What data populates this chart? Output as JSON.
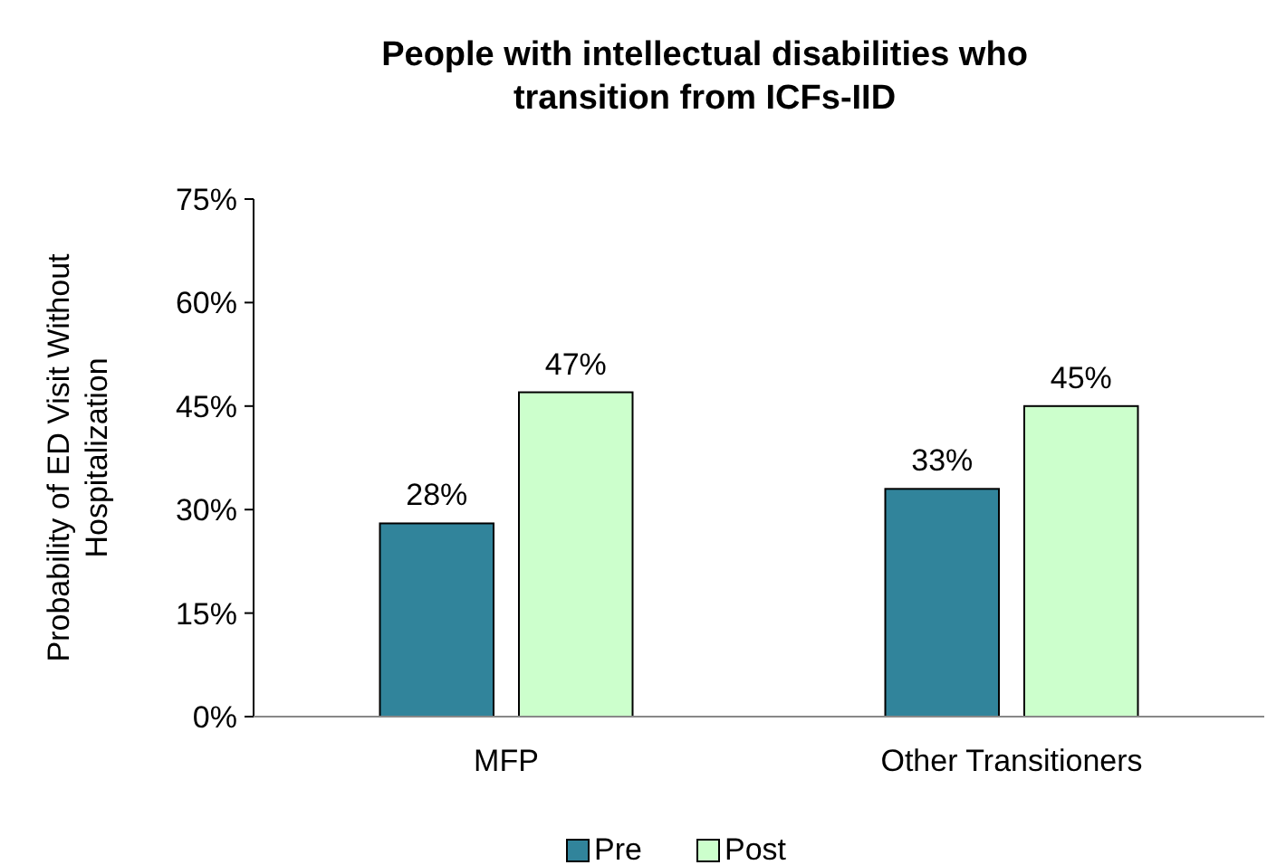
{
  "chart_data": {
    "type": "bar",
    "title": "People with intellectual disabilities who transition from ICFs-IID",
    "ylabel": "Probability of ED Visit Without Hospitalization",
    "categories": [
      "MFP",
      "Other Transitioners"
    ],
    "series": [
      {
        "name": "Pre",
        "color": "#31849b",
        "values": [
          28,
          33
        ],
        "value_labels": [
          "28%",
          "33%"
        ]
      },
      {
        "name": "Post",
        "color": "#ccffcc",
        "values": [
          47,
          45
        ],
        "value_labels": [
          "47%",
          "45%"
        ]
      }
    ],
    "ylim": [
      0,
      75
    ],
    "yticks": [
      {
        "value": 0,
        "label": "0%"
      },
      {
        "value": 15,
        "label": "15%"
      },
      {
        "value": 30,
        "label": "30%"
      },
      {
        "value": 45,
        "label": "45%"
      },
      {
        "value": 60,
        "label": "60%"
      },
      {
        "value": 75,
        "label": "75%"
      }
    ],
    "grid": false,
    "legend": "bottom"
  }
}
